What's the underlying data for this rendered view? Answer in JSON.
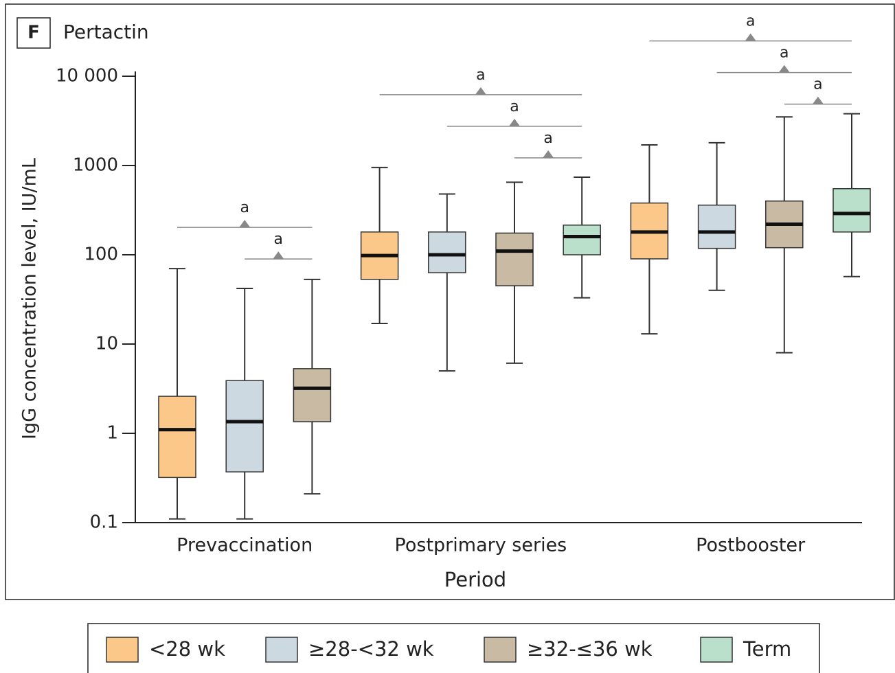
{
  "chart_data": {
    "type": "box",
    "panel": "F",
    "title": "Pertactin",
    "x_label": "Period",
    "y_label": "IgG concentration level, IU/mL",
    "categories": [
      "Prevaccination",
      "Postprimary series",
      "Postbooster"
    ],
    "log_scale": true,
    "ylim": [
      0.1,
      10000
    ],
    "yticks": [
      0.1,
      1,
      10,
      100,
      1000,
      {
        "value": 10000,
        "label": "10 000"
      }
    ],
    "legend": "bottom",
    "series": [
      {
        "name": "<28 wk",
        "color": "#fbc88a",
        "stats": [
          {
            "min": 0.11,
            "q1": 0.32,
            "median": 1.1,
            "q3": 2.6,
            "max": 70
          },
          {
            "min": 17,
            "q1": 53,
            "median": 98,
            "q3": 180,
            "max": 950
          },
          {
            "min": 13,
            "q1": 90,
            "median": 180,
            "q3": 380,
            "max": 1700
          }
        ]
      },
      {
        "name": "≥28-<32 wk",
        "color": "#cdd9e1",
        "stats": [
          {
            "min": 0.11,
            "q1": 0.37,
            "median": 1.35,
            "q3": 3.9,
            "max": 42
          },
          {
            "min": 5,
            "q1": 63,
            "median": 100,
            "q3": 180,
            "max": 480
          },
          {
            "min": 40,
            "q1": 118,
            "median": 180,
            "q3": 360,
            "max": 1800
          }
        ]
      },
      {
        "name": "≥32-≤36 wk",
        "color": "#c9baa3",
        "stats": [
          {
            "min": 0.21,
            "q1": 1.35,
            "median": 3.2,
            "q3": 5.3,
            "max": 53
          },
          {
            "min": 6.1,
            "q1": 45,
            "median": 110,
            "q3": 175,
            "max": 650
          },
          {
            "min": 8,
            "q1": 120,
            "median": 220,
            "q3": 400,
            "max": 3500
          }
        ]
      },
      {
        "name": "Term",
        "color": "#badfca",
        "stats": [
          null,
          {
            "min": 33,
            "q1": 100,
            "median": 160,
            "q3": 215,
            "max": 740
          },
          {
            "min": 57,
            "q1": 180,
            "median": 290,
            "q3": 550,
            "max": 3800
          }
        ]
      }
    ],
    "annotations": [
      {
        "text": "a",
        "category": "Prevaccination",
        "from": "≥28-<32 wk",
        "to": "≥32-≤36 wk"
      },
      {
        "text": "a",
        "category": "Prevaccination",
        "from": "<28 wk",
        "to": "≥32-≤36 wk"
      },
      {
        "text": "a",
        "category": "Postprimary series",
        "from": "≥32-≤36 wk",
        "to": "Term"
      },
      {
        "text": "a",
        "category": "Postprimary series",
        "from": "≥28-<32 wk",
        "to": "Term"
      },
      {
        "text": "a",
        "category": "Postprimary series",
        "from": "<28 wk",
        "to": "Term"
      },
      {
        "text": "a",
        "category": "Postbooster",
        "from": "≥32-≤36 wk",
        "to": "Term"
      },
      {
        "text": "a",
        "category": "Postbooster",
        "from": "≥28-<32 wk",
        "to": "Term"
      },
      {
        "text": "a",
        "category": "Postbooster",
        "from": "<28 wk",
        "to": "Term"
      }
    ]
  }
}
